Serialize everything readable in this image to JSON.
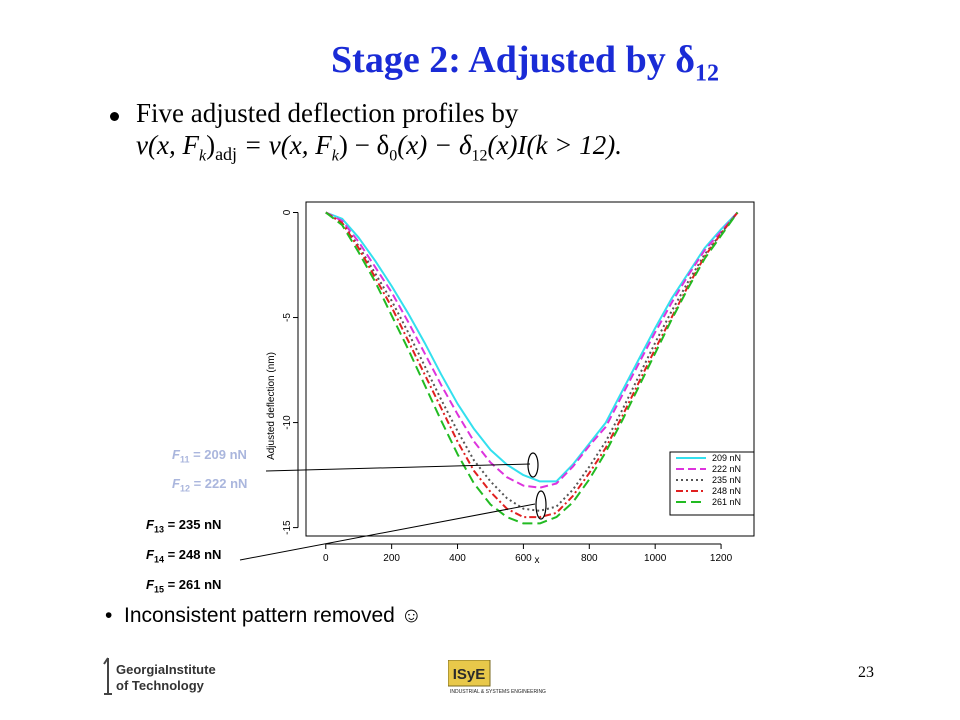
{
  "slide": {
    "title_prefix": "Stage 2:  Adjusted by δ",
    "title_subscript": "12",
    "bullet1_text": "Five adjusted deflection profiles by",
    "formula": {
      "lhs_v": "v",
      "lhs_args": "(x, F",
      "lhs_k": "k",
      "lhs_close": ")",
      "lhs_adj": "adj",
      "rhs": " = v(x, F",
      "rhs_k": "k",
      "rhs_rest": ") − δ",
      "d0_sub": "0",
      "d0_arg": "(x) − δ",
      "d12_sub": "12",
      "d12_arg": "(x)I(k > 12)."
    },
    "bullet2_text": "Inconsistent pattern removed ☺",
    "page_number": "23"
  },
  "logos": {
    "georgia_tech_line1": "GeorgiaInstitute",
    "georgia_tech_line2": "of Technology",
    "isye_mark": "ISyE",
    "isye_caption": "INDUSTRIAL & SYSTEMS ENGINEERING"
  },
  "force_labels": [
    {
      "name": "F",
      "sub": "11",
      "value": " = 209 nN",
      "style": "faded"
    },
    {
      "name": "F",
      "sub": "12",
      "value": " = 222 nN",
      "style": "faded"
    },
    {
      "name": "F",
      "sub": "13",
      "value": " = 235 nN",
      "style": "dark"
    },
    {
      "name": "F",
      "sub": "14",
      "value": " = 248 nN",
      "style": "dark"
    },
    {
      "name": "F",
      "sub": "15",
      "value": " = 261 nN",
      "style": "dark"
    }
  ],
  "chart_data": {
    "type": "line",
    "xlabel": "x",
    "ylabel": "Adjusted deflection (nm)",
    "xlim": [
      -60,
      1300
    ],
    "ylim": [
      -15.4,
      0.5
    ],
    "xticks": [
      0,
      200,
      400,
      600,
      800,
      1000,
      1200
    ],
    "yticks": [
      0,
      -5,
      -10,
      -15
    ],
    "legend_position": "bottom-right",
    "grid": false,
    "series": [
      {
        "name": "209 nN",
        "color": "#33e0ee",
        "dash": "",
        "x": [
          0,
          50,
          100,
          150,
          200,
          250,
          300,
          350,
          400,
          450,
          500,
          550,
          600,
          650,
          700,
          750,
          800,
          850,
          900,
          950,
          1000,
          1050,
          1100,
          1150,
          1200,
          1250
        ],
        "y": [
          0,
          -0.3,
          -1.2,
          -2.3,
          -3.5,
          -4.8,
          -6.2,
          -7.7,
          -9.1,
          -10.3,
          -11.3,
          -12.0,
          -12.5,
          -12.8,
          -12.8,
          -12.0,
          -11.0,
          -10.0,
          -8.5,
          -7.0,
          -5.5,
          -4.1,
          -2.9,
          -1.7,
          -0.8,
          0
        ]
      },
      {
        "name": "222 nN",
        "color": "#dd33dd",
        "dash": "8,4",
        "x": [
          0,
          50,
          100,
          150,
          200,
          250,
          300,
          350,
          400,
          450,
          500,
          550,
          600,
          650,
          700,
          750,
          800,
          850,
          900,
          950,
          1000,
          1050,
          1100,
          1150,
          1200,
          1250
        ],
        "y": [
          0,
          -0.4,
          -1.4,
          -2.6,
          -3.8,
          -5.2,
          -6.7,
          -8.2,
          -9.6,
          -10.9,
          -11.9,
          -12.6,
          -13.0,
          -13.1,
          -12.9,
          -12.1,
          -11.1,
          -10.2,
          -8.7,
          -7.2,
          -5.7,
          -4.3,
          -3.0,
          -1.8,
          -0.9,
          0
        ]
      },
      {
        "name": "235 nN",
        "color": "#555555",
        "dash": "2,3",
        "x": [
          0,
          50,
          100,
          150,
          200,
          250,
          300,
          350,
          400,
          450,
          500,
          550,
          600,
          650,
          700,
          750,
          800,
          850,
          900,
          950,
          1000,
          1050,
          1100,
          1150,
          1200,
          1250
        ],
        "y": [
          0,
          -0.5,
          -1.6,
          -2.9,
          -4.2,
          -5.7,
          -7.3,
          -8.9,
          -10.4,
          -11.8,
          -12.8,
          -13.6,
          -14.1,
          -14.2,
          -14.0,
          -13.2,
          -12.1,
          -10.9,
          -9.4,
          -7.8,
          -6.2,
          -4.7,
          -3.3,
          -2.0,
          -1.0,
          0
        ]
      },
      {
        "name": "248 nN",
        "color": "#e02020",
        "dash": "7,3,2,3",
        "x": [
          0,
          50,
          100,
          150,
          200,
          250,
          300,
          350,
          400,
          450,
          500,
          550,
          600,
          650,
          700,
          750,
          800,
          850,
          900,
          950,
          1000,
          1050,
          1100,
          1150,
          1200,
          1250
        ],
        "y": [
          0,
          -0.5,
          -1.7,
          -3.1,
          -4.5,
          -6.1,
          -7.7,
          -9.3,
          -10.9,
          -12.3,
          -13.3,
          -14.1,
          -14.5,
          -14.5,
          -14.3,
          -13.5,
          -12.4,
          -11.2,
          -9.7,
          -8.1,
          -6.5,
          -5.0,
          -3.5,
          -2.1,
          -1.0,
          0
        ]
      },
      {
        "name": "261 nN",
        "color": "#22bb22",
        "dash": "10,5",
        "x": [
          0,
          50,
          100,
          150,
          200,
          250,
          300,
          350,
          400,
          450,
          500,
          550,
          600,
          650,
          700,
          750,
          800,
          850,
          900,
          950,
          1000,
          1050,
          1100,
          1150,
          1200,
          1250
        ],
        "y": [
          0,
          -0.6,
          -1.9,
          -3.3,
          -4.9,
          -6.5,
          -8.2,
          -9.9,
          -11.5,
          -12.9,
          -13.9,
          -14.5,
          -14.8,
          -14.8,
          -14.5,
          -13.8,
          -12.7,
          -11.4,
          -9.9,
          -8.3,
          -6.7,
          -5.1,
          -3.6,
          -2.2,
          -1.1,
          0
        ]
      }
    ]
  }
}
